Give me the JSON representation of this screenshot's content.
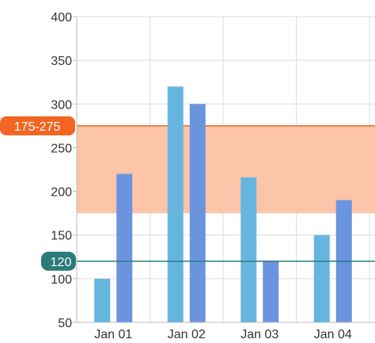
{
  "chart_data": {
    "type": "bar",
    "categories": [
      "Jan 01",
      "Jan 02",
      "Jan 03",
      "Jan 04"
    ],
    "series": [
      {
        "values": [
          100,
          320,
          216,
          150
        ],
        "color": "#66b5de"
      },
      {
        "values": [
          220,
          300,
          120,
          190
        ],
        "color": "#6a94de"
      }
    ],
    "ylim": [
      50,
      400
    ],
    "yticks": [
      50,
      100,
      150,
      200,
      250,
      300,
      350,
      400
    ],
    "grid": true,
    "band": {
      "from": 175,
      "to": 275,
      "label": "175-275",
      "color": "#f26522",
      "fill": "#fcc4a8"
    },
    "line": {
      "value": 120,
      "label": "120",
      "color": "#2a7b7a"
    }
  }
}
